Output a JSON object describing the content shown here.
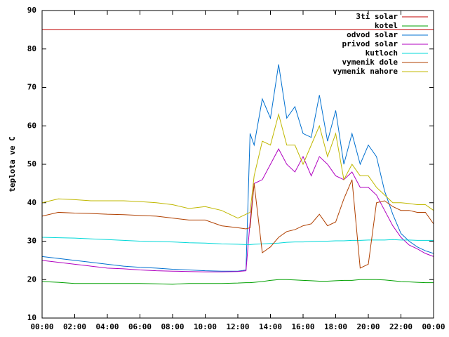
{
  "chart_data": {
    "type": "line",
    "ylabel": "teplota ve C",
    "x": [
      0,
      1,
      2,
      3,
      4,
      5,
      6,
      7,
      8,
      9,
      10,
      11,
      12,
      12.5,
      12.75,
      13,
      13.5,
      14,
      14.5,
      15,
      15.5,
      16,
      16.5,
      17,
      17.5,
      18,
      18.5,
      19,
      19.5,
      20,
      20.5,
      21,
      21.5,
      22,
      22.5,
      23,
      23.5,
      24
    ],
    "xlim": [
      0,
      24
    ],
    "xticks": [
      {
        "value": 0,
        "label": "00:00"
      },
      {
        "value": 2,
        "label": "02:00"
      },
      {
        "value": 4,
        "label": "04:00"
      },
      {
        "value": 6,
        "label": "06:00"
      },
      {
        "value": 8,
        "label": "08:00"
      },
      {
        "value": 10,
        "label": "10:00"
      },
      {
        "value": 12,
        "label": "12:00"
      },
      {
        "value": 14,
        "label": "14:00"
      },
      {
        "value": 16,
        "label": "16:00"
      },
      {
        "value": 18,
        "label": "18:00"
      },
      {
        "value": 20,
        "label": "20:00"
      },
      {
        "value": 22,
        "label": "22:00"
      },
      {
        "value": 24,
        "label": "00:00"
      }
    ],
    "ylim": [
      10,
      90
    ],
    "yticks": [
      10,
      20,
      30,
      40,
      50,
      60,
      70,
      80,
      90
    ],
    "grid": false,
    "legend": "top-right",
    "series": [
      {
        "name": "3ti solar",
        "color": "#c00000",
        "values": [
          85,
          85,
          85,
          85,
          85,
          85,
          85,
          85,
          85,
          85,
          85,
          85,
          85,
          85,
          85,
          85,
          85,
          85,
          85,
          85,
          85,
          85,
          85,
          85,
          85,
          85,
          85,
          85,
          85,
          85,
          85,
          85,
          85,
          85,
          85,
          85,
          85,
          85
        ]
      },
      {
        "name": "kotel",
        "color": "#00a000",
        "values": [
          19.5,
          19.3,
          19,
          19,
          19,
          19,
          19,
          18.9,
          18.8,
          19,
          19,
          19,
          19.1,
          19.2,
          19.2,
          19.3,
          19.5,
          19.8,
          20,
          20,
          19.9,
          19.8,
          19.7,
          19.6,
          19.6,
          19.7,
          19.8,
          19.8,
          20,
          20,
          20,
          19.9,
          19.7,
          19.5,
          19.4,
          19.3,
          19.2,
          19.2
        ]
      },
      {
        "name": "odvod solar",
        "color": "#0070d0",
        "values": [
          26,
          25.5,
          25,
          24.5,
          24,
          23.5,
          23.2,
          23,
          22.7,
          22.5,
          22.3,
          22.2,
          22.2,
          22.5,
          58,
          55,
          67,
          62,
          76,
          62,
          65,
          58,
          57,
          68,
          56,
          64,
          50,
          58,
          50,
          55,
          52,
          43,
          37,
          32,
          30,
          28.5,
          27.5,
          26.8
        ]
      },
      {
        "name": "privod solar",
        "color": "#b000c0",
        "values": [
          25,
          24.5,
          24,
          23.5,
          23,
          22.8,
          22.5,
          22.3,
          22.2,
          22.1,
          22,
          22,
          22.1,
          22.3,
          35,
          45,
          46,
          50,
          54,
          50,
          48,
          52,
          47,
          52,
          50,
          47,
          46,
          48,
          44,
          44,
          42,
          38,
          34,
          31,
          29,
          28,
          26.8,
          26
        ]
      },
      {
        "name": "kutloch",
        "color": "#00d8d8",
        "values": [
          31,
          30.9,
          30.8,
          30.6,
          30.4,
          30.2,
          30,
          29.9,
          29.8,
          29.6,
          29.5,
          29.3,
          29.2,
          29.1,
          29.1,
          29.2,
          29.3,
          29.4,
          29.5,
          29.7,
          29.8,
          29.8,
          29.9,
          30,
          30,
          30.1,
          30.1,
          30.2,
          30.2,
          30.3,
          30.3,
          30.3,
          30.4,
          30.3,
          30.3,
          30.2,
          30.2,
          30.2
        ]
      },
      {
        "name": "vymenik dole",
        "color": "#b04000",
        "values": [
          36.5,
          37.5,
          37.3,
          37.2,
          37,
          36.9,
          36.7,
          36.5,
          36,
          35.5,
          35.5,
          34,
          33.5,
          33.2,
          33.5,
          45,
          27,
          28.5,
          31,
          32.5,
          33,
          34,
          34.5,
          37,
          34,
          35,
          41,
          46,
          23,
          24,
          40,
          40.5,
          39,
          38,
          38,
          37.5,
          37.5,
          34.5
        ]
      },
      {
        "name": "vymenik nahore",
        "color": "#c0b800",
        "values": [
          40,
          41,
          40.8,
          40.5,
          40.5,
          40.5,
          40.3,
          40,
          39.5,
          38.5,
          39,
          38,
          36,
          37,
          37.5,
          47,
          56,
          55,
          63,
          55,
          55,
          50,
          55,
          60,
          52,
          58,
          46,
          50,
          47,
          47,
          44,
          42,
          40,
          40,
          39.8,
          39.5,
          39.5,
          38
        ]
      }
    ]
  }
}
